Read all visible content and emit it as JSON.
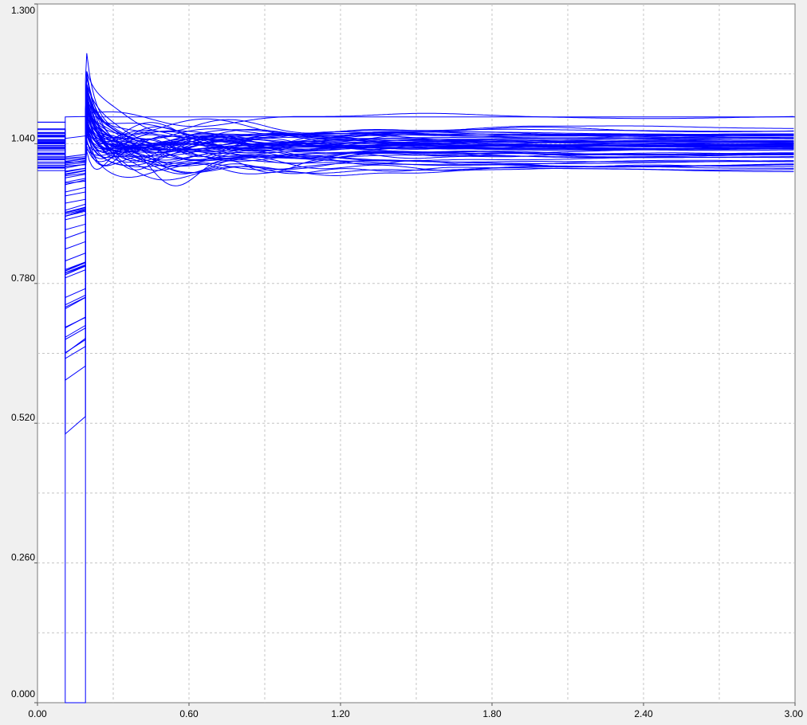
{
  "chart_data": {
    "type": "line",
    "title": "",
    "xlabel": "",
    "ylabel": "",
    "xlim": [
      0,
      3.0
    ],
    "ylim": [
      0,
      1.3
    ],
    "x_ticks": [
      "0.00",
      "0.60",
      "1.20",
      "1.80",
      "2.40",
      "3.00"
    ],
    "y_ticks": [
      "0.000",
      "0.260",
      "0.520",
      "0.780",
      "1.040",
      "1.300"
    ],
    "grid": true,
    "legend": "none",
    "line_color": "#0000ff",
    "series_count": 60,
    "events": {
      "fault_on": 0.11,
      "fault_cleared": 0.19
    },
    "representative_series": [
      {
        "pre": 1.08,
        "dip": 1.09,
        "peak": 1.1,
        "settle": 1.09
      },
      {
        "pre": 1.06,
        "dip": 1.05,
        "peak": 1.14,
        "settle": 1.07
      },
      {
        "pre": 1.04,
        "dip": 0.5,
        "peak": 1.15,
        "settle": 1.04
      },
      {
        "pre": 1.03,
        "dip": 0.6,
        "peak": 1.13,
        "settle": 1.03
      },
      {
        "pre": 1.02,
        "dip": 0.68,
        "peak": 1.12,
        "settle": 1.02
      },
      {
        "pre": 1.0,
        "dip": 0.8,
        "peak": 1.1,
        "settle": 1.0
      },
      {
        "pre": 0.99,
        "dip": 0.88,
        "peak": 1.09,
        "settle": 0.99
      }
    ]
  }
}
